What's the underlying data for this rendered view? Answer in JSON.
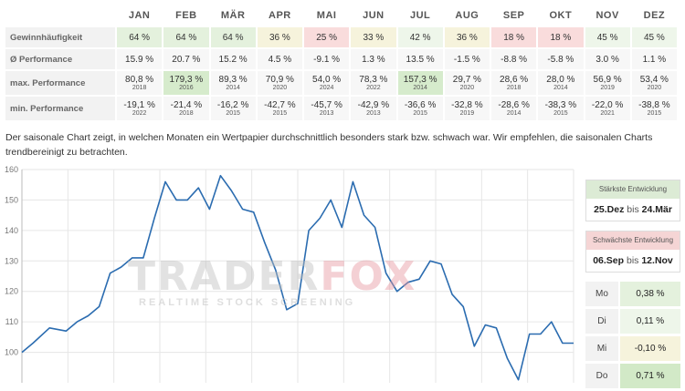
{
  "table": {
    "months": [
      "JAN",
      "FEB",
      "MÄR",
      "APR",
      "MAI",
      "JUN",
      "JUL",
      "AUG",
      "SEP",
      "OKT",
      "NOV",
      "DEZ"
    ],
    "rows": {
      "freq": {
        "label": "Gewinnhäufigkeit",
        "values": [
          "64 %",
          "64 %",
          "64 %",
          "36 %",
          "25 %",
          "33 %",
          "42 %",
          "36 %",
          "18 %",
          "18 %",
          "45 %",
          "45 %"
        ]
      },
      "avg": {
        "label": "Ø Performance",
        "values": [
          "15.9 %",
          "20.7 %",
          "15.2 %",
          "4.5 %",
          "-9.1 %",
          "1.3 %",
          "13.5 %",
          "-1.5 %",
          "-8.8 %",
          "-5.8 %",
          "3.0 %",
          "1.1 %"
        ]
      },
      "max": {
        "label": "max. Performance",
        "values": [
          "80,8 %",
          "179,3 %",
          "89,3 %",
          "70,9 %",
          "54,0 %",
          "78,3 %",
          "157,3 %",
          "29,7 %",
          "28,6 %",
          "28,0 %",
          "56,9 %",
          "53,4 %"
        ],
        "years": [
          "2018",
          "2016",
          "2014",
          "2020",
          "2024",
          "2022",
          "2014",
          "2020",
          "2018",
          "2014",
          "2019",
          "2020"
        ]
      },
      "min": {
        "label": "min. Performance",
        "values": [
          "-19,1 %",
          "-21,4 %",
          "-16,2 %",
          "-42,7 %",
          "-45,7 %",
          "-42,9 %",
          "-36,6 %",
          "-32,8 %",
          "-28,6 %",
          "-38,3 %",
          "-22,0 %",
          "-38,8 %"
        ],
        "years": [
          "2022",
          "2018",
          "2015",
          "2015",
          "2013",
          "2013",
          "2015",
          "2019",
          "2014",
          "2015",
          "2021",
          "2015"
        ]
      }
    }
  },
  "description": "Der saisonale Chart zeigt, in welchen Monaten ein Wertpapier durchschnittlich besonders stark bzw. schwach war. Wir empfehlen, die saisonalen Charts trendbereinigt zu betrachten.",
  "watermark": {
    "title_main": "TRADER",
    "title_accent": "FOX",
    "subtitle": "REALTIME STOCK SCREENING"
  },
  "strongest": {
    "heading": "Stärkste Entwicklung",
    "from": "25.Dez",
    "connector": "bis",
    "to": "24.Mär"
  },
  "weakest": {
    "heading": "Schwächste Entwicklung",
    "from": "06.Sep",
    "connector": "bis",
    "to": "12.Nov"
  },
  "weekdays": [
    {
      "day": "Mo",
      "value": "0,38 %"
    },
    {
      "day": "Di",
      "value": "0,11 %"
    },
    {
      "day": "Mi",
      "value": "-0,10 %"
    },
    {
      "day": "Do",
      "value": "0,71 %"
    }
  ],
  "colors": {
    "line": "#2b6cb0",
    "grid": "#e6e6e6",
    "positive": "#e4f1dd",
    "negative": "#f9dcdc"
  },
  "chart_data": {
    "type": "line",
    "y_ticks": [
      100,
      110,
      120,
      130,
      140,
      150,
      160
    ],
    "y_range": [
      90,
      160
    ],
    "x_range": [
      0,
      1
    ],
    "grid": "on",
    "series": [
      {
        "x": [
          0,
          0.02,
          0.05,
          0.08,
          0.1,
          0.12,
          0.14,
          0.16,
          0.18,
          0.2,
          0.22,
          0.24,
          0.26,
          0.28,
          0.3,
          0.32,
          0.34,
          0.36,
          0.38,
          0.4,
          0.42,
          0.44,
          0.46,
          0.48,
          0.5,
          0.52,
          0.54,
          0.56,
          0.58,
          0.6,
          0.62,
          0.64,
          0.66,
          0.68,
          0.7,
          0.72,
          0.74,
          0.76,
          0.78,
          0.8,
          0.82,
          0.84,
          0.86,
          0.88,
          0.9,
          0.92,
          0.94,
          0.96,
          0.98,
          1.0
        ],
        "y": [
          100,
          103,
          108,
          107,
          110,
          112,
          115,
          126,
          128,
          131,
          131,
          144,
          156,
          150,
          150,
          154,
          147,
          158,
          153,
          147,
          146,
          136,
          127,
          114,
          116,
          140,
          144,
          150,
          141,
          156,
          145,
          141,
          126,
          120,
          123,
          124,
          130,
          129,
          119,
          115,
          102,
          109,
          108,
          98,
          91,
          106,
          106,
          110,
          103,
          103
        ]
      }
    ]
  }
}
